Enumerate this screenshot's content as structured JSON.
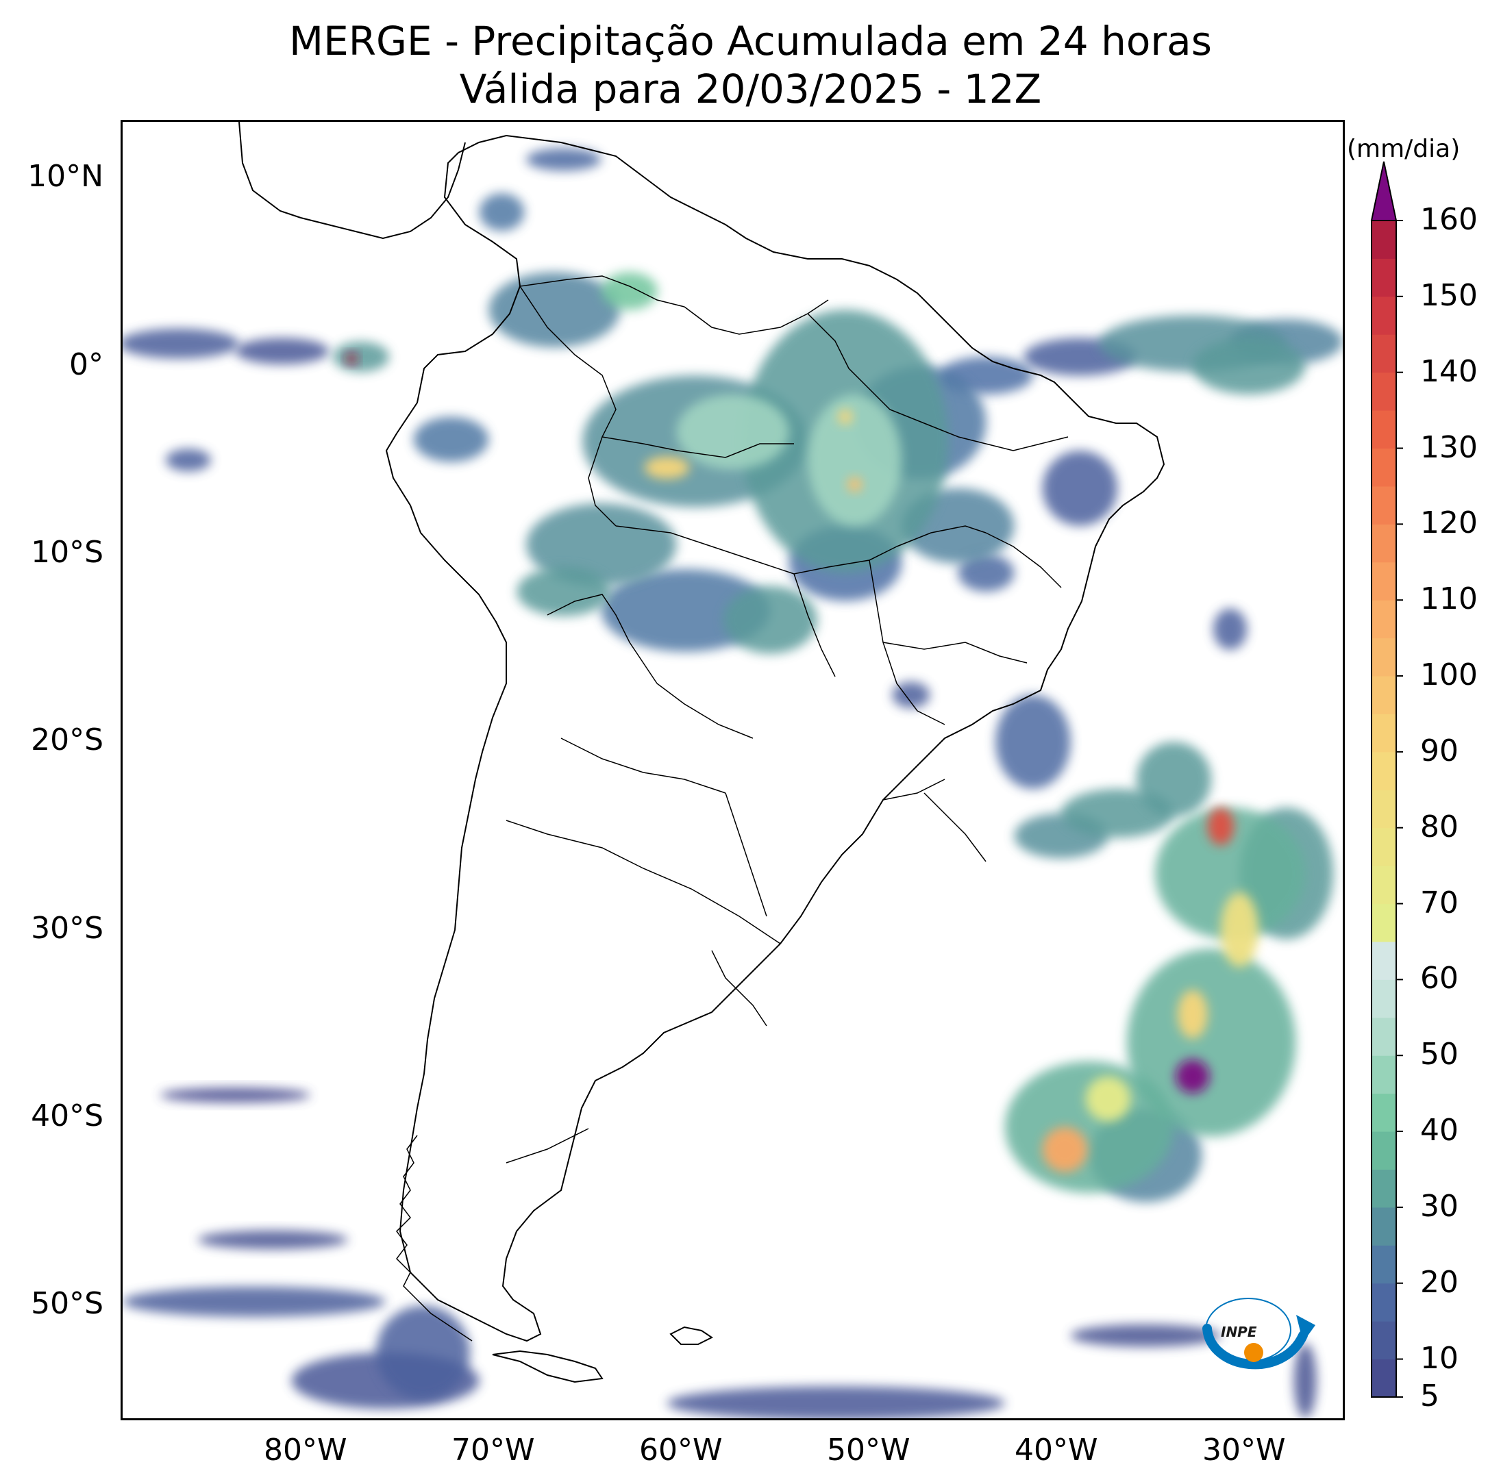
{
  "title": {
    "line1": "MERGE - Precipitação Acumulada em 24 horas",
    "line2": "Válida para 20/03/2025 - 12Z"
  },
  "map": {
    "projection": "PlateCarree",
    "lon_range": [
      -90,
      -25
    ],
    "lat_range": [
      -56,
      13
    ],
    "lat_ticks": [
      {
        "value": 10,
        "label": "10°N"
      },
      {
        "value": 0,
        "label": "0°"
      },
      {
        "value": -10,
        "label": "10°S"
      },
      {
        "value": -20,
        "label": "20°S"
      },
      {
        "value": -30,
        "label": "30°S"
      },
      {
        "value": -40,
        "label": "40°S"
      },
      {
        "value": -50,
        "label": "50°S"
      }
    ],
    "lon_ticks": [
      {
        "value": -80,
        "label": "80°W"
      },
      {
        "value": -70,
        "label": "70°W"
      },
      {
        "value": -60,
        "label": "60°W"
      },
      {
        "value": -50,
        "label": "50°W"
      },
      {
        "value": -40,
        "label": "40°W"
      },
      {
        "value": -30,
        "label": "30°W"
      }
    ],
    "coastline_color": "#000000",
    "precip_cells": [
      {
        "lon": -87,
        "lat": 1.2,
        "rx": 3.2,
        "ry": 0.8,
        "v": 14
      },
      {
        "lon": -81.5,
        "lat": 0.8,
        "rx": 2.5,
        "ry": 0.7,
        "v": 12
      },
      {
        "lon": -77.3,
        "lat": 0.5,
        "rx": 1.5,
        "ry": 0.8,
        "v": 30
      },
      {
        "lon": -77.8,
        "lat": 0.4,
        "rx": 0.3,
        "ry": 0.3,
        "v": 160
      },
      {
        "lon": -86.5,
        "lat": -5,
        "rx": 1.2,
        "ry": 0.6,
        "v": 15
      },
      {
        "lon": -72.5,
        "lat": -3.9,
        "rx": 2,
        "ry": 1.2,
        "v": 22
      },
      {
        "lon": -67,
        "lat": 3,
        "rx": 3.5,
        "ry": 2,
        "v": 25
      },
      {
        "lon": -63,
        "lat": 4,
        "rx": 1.5,
        "ry": 1,
        "v": 40
      },
      {
        "lon": -69.8,
        "lat": 8.2,
        "rx": 1.2,
        "ry": 1,
        "v": 22
      },
      {
        "lon": -66.5,
        "lat": 11,
        "rx": 2,
        "ry": 0.6,
        "v": 18
      },
      {
        "lon": -59.5,
        "lat": -4,
        "rx": 6,
        "ry": 3.5,
        "v": 28
      },
      {
        "lon": -57.5,
        "lat": -3.5,
        "rx": 3,
        "ry": 2,
        "v": 50
      },
      {
        "lon": -61,
        "lat": -5.4,
        "rx": 1.2,
        "ry": 0.6,
        "v": 90
      },
      {
        "lon": -51.5,
        "lat": -4,
        "rx": 5.5,
        "ry": 7,
        "v": 30
      },
      {
        "lon": -51,
        "lat": -5,
        "rx": 2.5,
        "ry": 3.5,
        "v": 50
      },
      {
        "lon": -51.5,
        "lat": -2.7,
        "rx": 0.4,
        "ry": 0.4,
        "v": 90
      },
      {
        "lon": -51,
        "lat": -6.3,
        "rx": 0.4,
        "ry": 0.4,
        "v": 100
      },
      {
        "lon": -47.5,
        "lat": -3,
        "rx": 3.5,
        "ry": 3,
        "v": 22
      },
      {
        "lon": -44,
        "lat": -0.5,
        "rx": 2.5,
        "ry": 1,
        "v": 20
      },
      {
        "lon": -45.5,
        "lat": -8.5,
        "rx": 3,
        "ry": 2,
        "v": 25
      },
      {
        "lon": -39,
        "lat": -6.5,
        "rx": 2,
        "ry": 2,
        "v": 15
      },
      {
        "lon": -64.5,
        "lat": -9.5,
        "rx": 4,
        "ry": 2.2,
        "v": 28
      },
      {
        "lon": -60,
        "lat": -13,
        "rx": 4.5,
        "ry": 2.2,
        "v": 22
      },
      {
        "lon": -55.5,
        "lat": -13.5,
        "rx": 2.5,
        "ry": 1.8,
        "v": 30
      },
      {
        "lon": -66.5,
        "lat": -12,
        "rx": 2.5,
        "ry": 1.3,
        "v": 30
      },
      {
        "lon": -51.5,
        "lat": -10.5,
        "rx": 3,
        "ry": 2,
        "v": 20
      },
      {
        "lon": -44,
        "lat": -11,
        "rx": 1.5,
        "ry": 1,
        "v": 18
      },
      {
        "lon": -41.5,
        "lat": -20,
        "rx": 2,
        "ry": 2.5,
        "v": 18
      },
      {
        "lon": -48,
        "lat": -17.5,
        "rx": 1,
        "ry": 0.7,
        "v": 14
      },
      {
        "lon": -37,
        "lat": -23.8,
        "rx": 3,
        "ry": 1.3,
        "v": 30
      },
      {
        "lon": -40,
        "lat": -25,
        "rx": 2.5,
        "ry": 1.2,
        "v": 28
      },
      {
        "lon": -34,
        "lat": -22,
        "rx": 2,
        "ry": 2,
        "v": 30
      },
      {
        "lon": -31,
        "lat": -27,
        "rx": 4,
        "ry": 3.5,
        "v": 35
      },
      {
        "lon": -31.5,
        "lat": -24.5,
        "rx": 0.7,
        "ry": 1,
        "v": 140
      },
      {
        "lon": -30.5,
        "lat": -30,
        "rx": 1,
        "ry": 2,
        "v": 80
      },
      {
        "lon": -28,
        "lat": -27,
        "rx": 2.5,
        "ry": 3.5,
        "v": 30
      },
      {
        "lon": -32,
        "lat": -36,
        "rx": 4.5,
        "ry": 5,
        "v": 35
      },
      {
        "lon": -33,
        "lat": -34.5,
        "rx": 0.8,
        "ry": 1.3,
        "v": 90
      },
      {
        "lon": -33,
        "lat": -37.8,
        "rx": 0.9,
        "ry": 0.9,
        "v": 165
      },
      {
        "lon": -38.5,
        "lat": -40.5,
        "rx": 4.5,
        "ry": 3.5,
        "v": 35
      },
      {
        "lon": -39.8,
        "lat": -41.7,
        "rx": 1.2,
        "ry": 1.2,
        "v": 110
      },
      {
        "lon": -37.5,
        "lat": -39,
        "rx": 1.2,
        "ry": 1.2,
        "v": 70
      },
      {
        "lon": -35.5,
        "lat": -42,
        "rx": 3,
        "ry": 2.5,
        "v": 25
      },
      {
        "lon": -33,
        "lat": 1.2,
        "rx": 5,
        "ry": 1.5,
        "v": 28
      },
      {
        "lon": -30,
        "lat": 0,
        "rx": 3,
        "ry": 1.5,
        "v": 30
      },
      {
        "lon": -28,
        "lat": 1.3,
        "rx": 3,
        "ry": 1.2,
        "v": 25
      },
      {
        "lon": -39,
        "lat": 0.5,
        "rx": 3,
        "ry": 1,
        "v": 15
      },
      {
        "lon": -31,
        "lat": -14,
        "rx": 0.9,
        "ry": 1.1,
        "v": 15
      },
      {
        "lon": -84,
        "lat": -38.8,
        "rx": 4,
        "ry": 0.4,
        "v": 8
      },
      {
        "lon": -82,
        "lat": -46.5,
        "rx": 4,
        "ry": 0.5,
        "v": 10
      },
      {
        "lon": -83,
        "lat": -49.8,
        "rx": 7,
        "ry": 0.8,
        "v": 14
      },
      {
        "lon": -74,
        "lat": -52.5,
        "rx": 2.5,
        "ry": 2.5,
        "v": 15
      },
      {
        "lon": -76,
        "lat": -54,
        "rx": 5,
        "ry": 1.5,
        "v": 12
      },
      {
        "lon": -52,
        "lat": -55.2,
        "rx": 9,
        "ry": 0.9,
        "v": 12
      },
      {
        "lon": -35.5,
        "lat": -51.6,
        "rx": 4,
        "ry": 0.6,
        "v": 10
      },
      {
        "lon": -27,
        "lat": -54,
        "rx": 0.6,
        "ry": 2,
        "v": 10
      }
    ]
  },
  "colorbar": {
    "unit": "(mm/dia)",
    "min": 5,
    "max": 160,
    "extend": "max",
    "over_color": "#7b0a82",
    "tick_labels": [
      {
        "value": 5,
        "label": "5"
      },
      {
        "value": 10,
        "label": "10"
      },
      {
        "value": 20,
        "label": "20"
      },
      {
        "value": 30,
        "label": "30"
      },
      {
        "value": 40,
        "label": "40"
      },
      {
        "value": 50,
        "label": "50"
      },
      {
        "value": 60,
        "label": "60"
      },
      {
        "value": 70,
        "label": "70"
      },
      {
        "value": 80,
        "label": "80"
      },
      {
        "value": 90,
        "label": "90"
      },
      {
        "value": 100,
        "label": "100"
      },
      {
        "value": 110,
        "label": "110"
      },
      {
        "value": 120,
        "label": "120"
      },
      {
        "value": 130,
        "label": "130"
      },
      {
        "value": 140,
        "label": "140"
      },
      {
        "value": 150,
        "label": "150"
      },
      {
        "value": 160,
        "label": "160"
      }
    ],
    "color_stops": [
      {
        "value": 5,
        "color": "#46468a"
      },
      {
        "value": 20,
        "color": "#4e6fa6"
      },
      {
        "value": 30,
        "color": "#5a9a9a"
      },
      {
        "value": 40,
        "color": "#6fc59c"
      },
      {
        "value": 55,
        "color": "#bfe1d6"
      },
      {
        "value": 65,
        "color": "#dbe9ea"
      },
      {
        "value": 66,
        "color": "#e2ef8c"
      },
      {
        "value": 90,
        "color": "#f7d67a"
      },
      {
        "value": 110,
        "color": "#f9a865"
      },
      {
        "value": 130,
        "color": "#ef6a45"
      },
      {
        "value": 150,
        "color": "#cc3340"
      },
      {
        "value": 160,
        "color": "#a5183f"
      }
    ]
  },
  "logo": {
    "icon": "inpe-logo",
    "text": "INPE",
    "colors": {
      "arc": "#0077be",
      "dot": "#f28c00"
    }
  }
}
